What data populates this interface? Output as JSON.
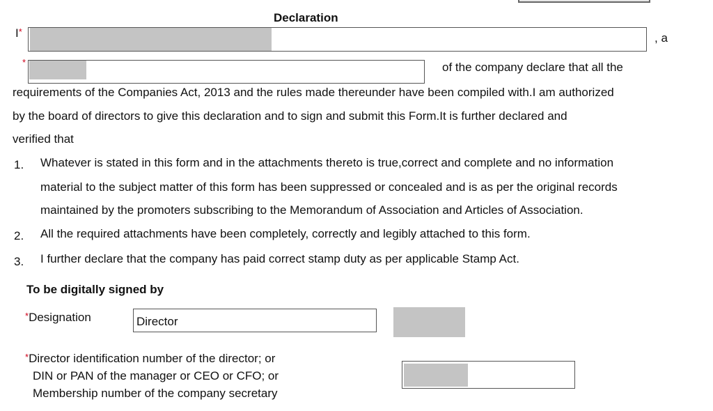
{
  "title": "Declaration",
  "line1": {
    "prefix": "I",
    "suffix": ", a"
  },
  "line2_suffix": "of the company declare that all the",
  "para": [
    "requirements of the Companies Act, 2013 and the rules made thereunder have been compiled with.I am authorized",
    "by the board of directors to give this declaration and to sign and submit this Form.It is further declared and",
    "verified that"
  ],
  "items": [
    {
      "num": "1.",
      "lines": [
        "Whatever is stated in this form and in the attachments thereto is true,correct and complete and no information",
        "material to the subject matter of this form has been suppressed or concealed and is as per the original records",
        "maintained by the promoters subscribing to the Memorandum of Association and Articles of Association."
      ]
    },
    {
      "num": "2.",
      "lines": [
        "All the required attachments have been completely, correctly and legibly attached to this form."
      ]
    },
    {
      "num": "3.",
      "lines": [
        "I further declare that the company has paid correct stamp duty as per applicable Stamp Act."
      ]
    }
  ],
  "sign": {
    "heading": "To be digitally signed by",
    "designation_label": "Designation",
    "designation_value": "Director",
    "din_label": [
      "Director identification number of the director; or",
      "DIN or PAN of the manager or CEO or CFO; or",
      "Membership number of the company secretary"
    ]
  },
  "required_mark": "*"
}
